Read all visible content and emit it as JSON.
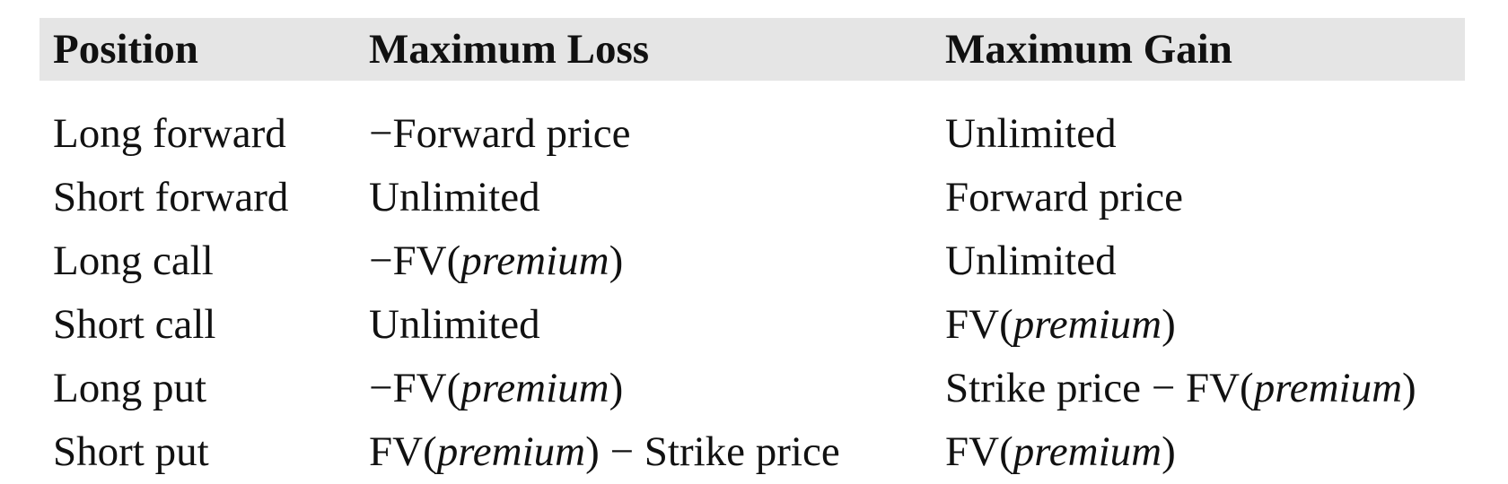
{
  "headers": [
    "Position",
    "Maximum Loss",
    "Maximum Gain"
  ],
  "rows": [
    {
      "position": "Long forward",
      "loss": [
        {
          "t": "−Forward price",
          "i": false
        }
      ],
      "gain": [
        {
          "t": "Unlimited",
          "i": false
        }
      ]
    },
    {
      "position": "Short forward",
      "loss": [
        {
          "t": "Unlimited",
          "i": false
        }
      ],
      "gain": [
        {
          "t": "Forward price",
          "i": false
        }
      ]
    },
    {
      "position": "Long call",
      "loss": [
        {
          "t": "−FV(",
          "i": false
        },
        {
          "t": "premium",
          "i": true
        },
        {
          "t": ")",
          "i": false
        }
      ],
      "gain": [
        {
          "t": "Unlimited",
          "i": false
        }
      ]
    },
    {
      "position": "Short call",
      "loss": [
        {
          "t": "Unlimited",
          "i": false
        }
      ],
      "gain": [
        {
          "t": "FV(",
          "i": false
        },
        {
          "t": "premium",
          "i": true
        },
        {
          "t": ")",
          "i": false
        }
      ]
    },
    {
      "position": "Long put",
      "loss": [
        {
          "t": "−FV(",
          "i": false
        },
        {
          "t": "premium",
          "i": true
        },
        {
          "t": ")",
          "i": false
        }
      ],
      "gain": [
        {
          "t": "Strike price − FV(",
          "i": false
        },
        {
          "t": "premium",
          "i": true
        },
        {
          "t": ")",
          "i": false
        }
      ]
    },
    {
      "position": "Short put",
      "loss": [
        {
          "t": "FV(",
          "i": false
        },
        {
          "t": "premium",
          "i": true
        },
        {
          "t": ") − Strike price",
          "i": false
        }
      ],
      "gain": [
        {
          "t": "FV(",
          "i": false
        },
        {
          "t": "premium",
          "i": true
        },
        {
          "t": ")",
          "i": false
        }
      ]
    }
  ]
}
